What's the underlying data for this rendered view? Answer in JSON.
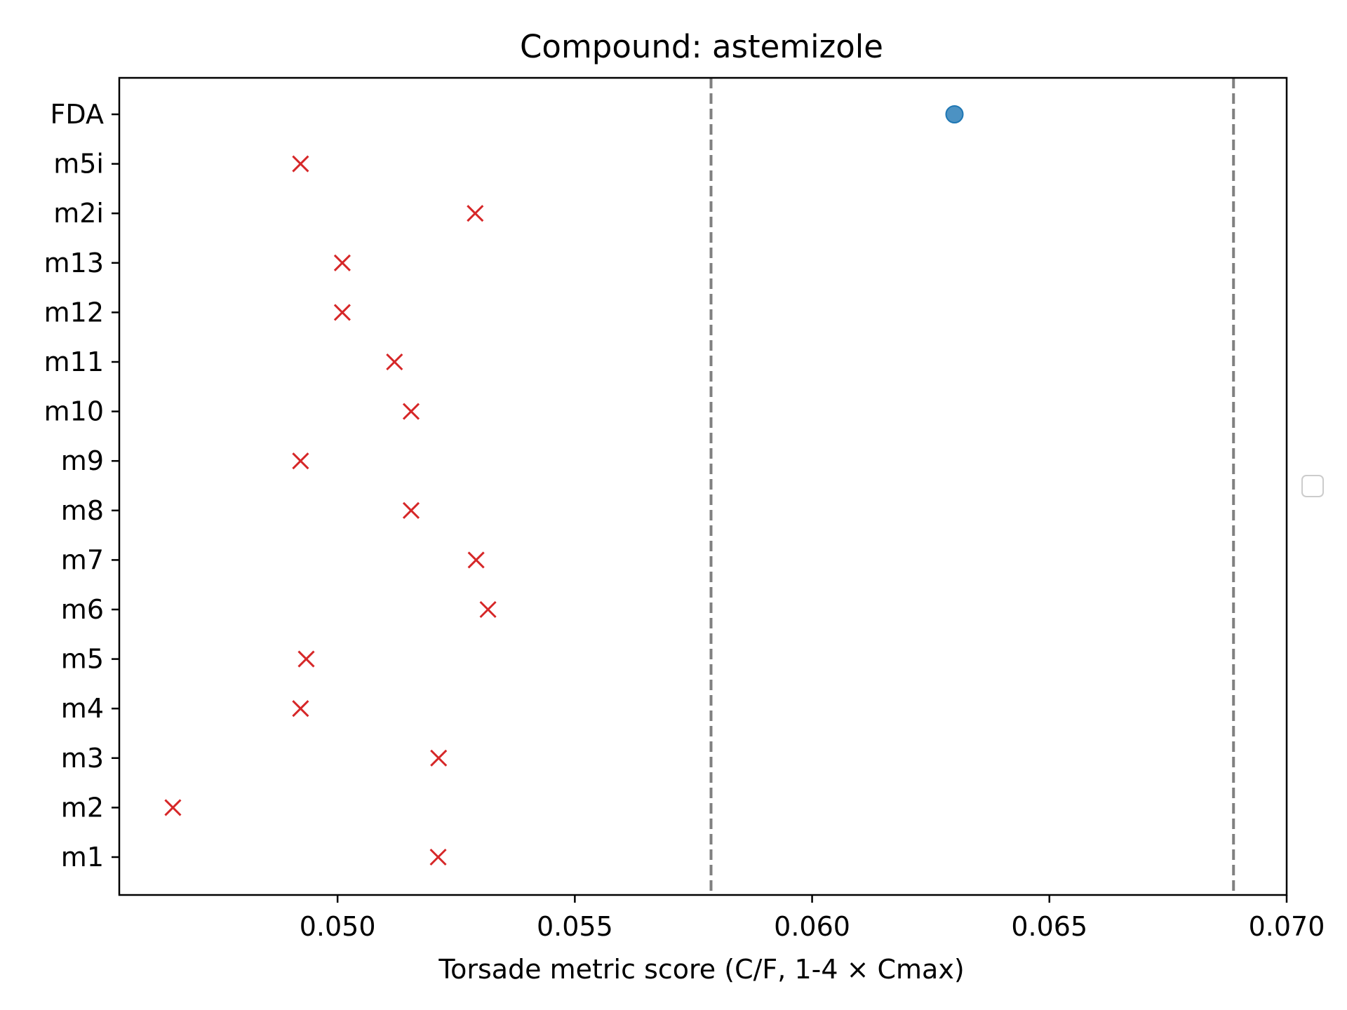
{
  "chart_data": {
    "type": "scatter",
    "title": "Compound: astemizole",
    "xlabel": "Torsade metric score (C/F, 1-4 × Cmax)",
    "ylabel": "",
    "xlim": [
      0.0454,
      0.07
    ],
    "xticks": [
      "0.050",
      "0.055",
      "0.060",
      "0.065",
      "0.070"
    ],
    "xtick_values": [
      0.05,
      0.055,
      0.06,
      0.065,
      0.07
    ],
    "categories": [
      "m1",
      "m2",
      "m3",
      "m4",
      "m5",
      "m6",
      "m7",
      "m8",
      "m9",
      "m10",
      "m11",
      "m12",
      "m13",
      "m2i",
      "m5i",
      "FDA"
    ],
    "series": [
      {
        "marker": "x",
        "color": "#d62728",
        "points": [
          {
            "y": "m1",
            "x": 0.05212
          },
          {
            "y": "m2",
            "x": 0.04653
          },
          {
            "y": "m3",
            "x": 0.05213
          },
          {
            "y": "m4",
            "x": 0.04922
          },
          {
            "y": "m5",
            "x": 0.04934
          },
          {
            "y": "m6",
            "x": 0.05317
          },
          {
            "y": "m7",
            "x": 0.05292
          },
          {
            "y": "m8",
            "x": 0.05155
          },
          {
            "y": "m9",
            "x": 0.04922
          },
          {
            "y": "m10",
            "x": 0.05155
          },
          {
            "y": "m11",
            "x": 0.0512
          },
          {
            "y": "m12",
            "x": 0.0501
          },
          {
            "y": "m13",
            "x": 0.0501
          },
          {
            "y": "m2i",
            "x": 0.0529
          },
          {
            "y": "m5i",
            "x": 0.04922
          }
        ]
      },
      {
        "marker": "circle",
        "color": "#1f77b4",
        "points": [
          {
            "y": "FDA",
            "x": 0.063
          }
        ]
      }
    ],
    "reference_lines": [
      {
        "x": 0.05787,
        "style": "dashed",
        "color": "#808080"
      },
      {
        "x": 0.06888,
        "style": "dashed",
        "color": "#808080"
      }
    ],
    "grid": false,
    "legend": {
      "placement": "center-right",
      "entries": []
    }
  }
}
